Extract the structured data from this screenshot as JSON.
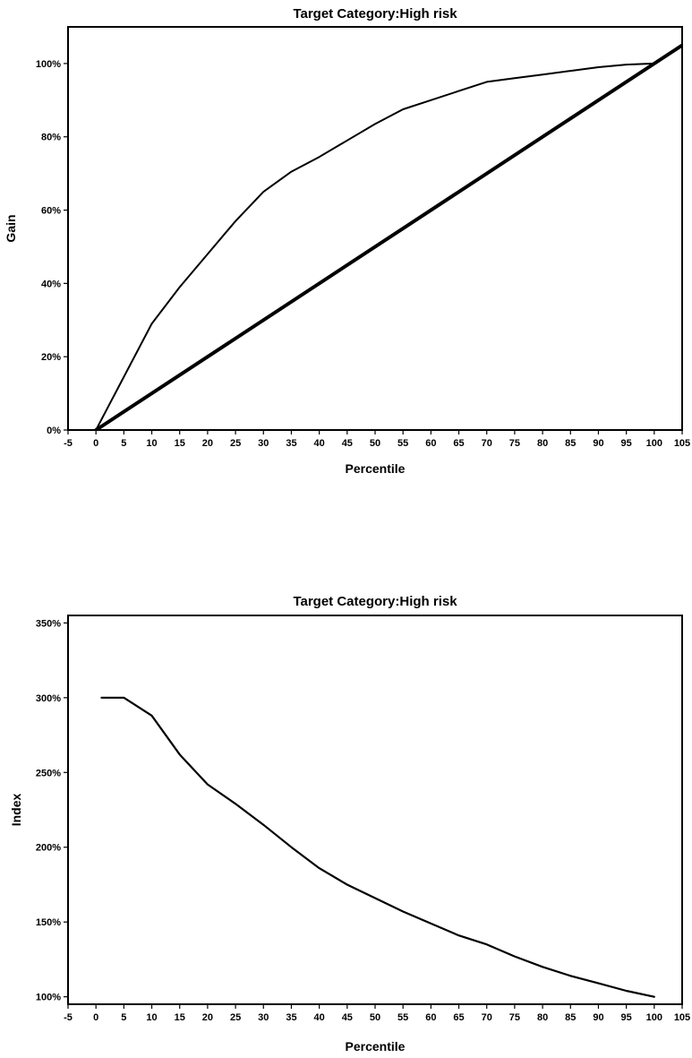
{
  "chart_data": [
    {
      "type": "line",
      "title": "Target Category:High risk",
      "xlabel": "Percentile",
      "ylabel": "Gain",
      "xlim": [
        -5,
        105
      ],
      "ylim": [
        0,
        110
      ],
      "x_ticks": [
        -5,
        0,
        5,
        10,
        15,
        20,
        25,
        30,
        35,
        40,
        45,
        50,
        55,
        60,
        65,
        70,
        75,
        80,
        85,
        90,
        95,
        100,
        105
      ],
      "x_tick_labels": [
        "-5",
        "0",
        "5",
        "10",
        "15",
        "20",
        "25",
        "30",
        "35",
        "40",
        "45",
        "50",
        "55",
        "60",
        "65",
        "70",
        "75",
        "80",
        "85",
        "90",
        "95",
        "100",
        "105"
      ],
      "y_ticks": [
        0,
        20,
        40,
        60,
        80,
        100
      ],
      "y_tick_labels": [
        "0%",
        "20%",
        "40%",
        "60%",
        "80%",
        "100%"
      ],
      "grid": false,
      "series": [
        {
          "x": [
            0,
            10,
            15,
            20,
            25,
            30,
            35,
            40,
            45,
            50,
            55,
            60,
            65,
            70,
            75,
            80,
            85,
            90,
            95,
            100
          ],
          "y": [
            0,
            29,
            39,
            48,
            57,
            65,
            70.5,
            74.5,
            79,
            83.5,
            87.5,
            90,
            92.5,
            95,
            96,
            97,
            98,
            99,
            99.7,
            100
          ],
          "stroke": 2
        },
        {
          "x": [
            0,
            105
          ],
          "y": [
            0,
            105
          ],
          "stroke": 4
        }
      ]
    },
    {
      "type": "line",
      "title": "Target Category:High risk",
      "xlabel": "Percentile",
      "ylabel": "Index",
      "xlim": [
        -5,
        105
      ],
      "ylim": [
        95,
        355
      ],
      "x_ticks": [
        -5,
        0,
        5,
        10,
        15,
        20,
        25,
        30,
        35,
        40,
        45,
        50,
        55,
        60,
        65,
        70,
        75,
        80,
        85,
        90,
        95,
        100,
        105
      ],
      "x_tick_labels": [
        "-5",
        "0",
        "5",
        "10",
        "15",
        "20",
        "25",
        "30",
        "35",
        "40",
        "45",
        "50",
        "55",
        "60",
        "65",
        "70",
        "75",
        "80",
        "85",
        "90",
        "95",
        "100",
        "105"
      ],
      "y_ticks": [
        100,
        150,
        200,
        250,
        300,
        350
      ],
      "y_tick_labels": [
        "100%",
        "150%",
        "200%",
        "250%",
        "300%",
        "350%"
      ],
      "grid": false,
      "series": [
        {
          "x": [
            1,
            5,
            10,
            15,
            20,
            25,
            30,
            35,
            40,
            45,
            50,
            55,
            60,
            65,
            70,
            75,
            80,
            85,
            90,
            95,
            100
          ],
          "y": [
            300,
            300,
            288,
            262,
            242,
            229,
            215,
            200,
            186,
            175,
            166,
            157,
            149,
            141,
            135,
            127,
            120,
            114,
            109,
            104,
            100
          ],
          "stroke": 2.2
        }
      ]
    }
  ]
}
